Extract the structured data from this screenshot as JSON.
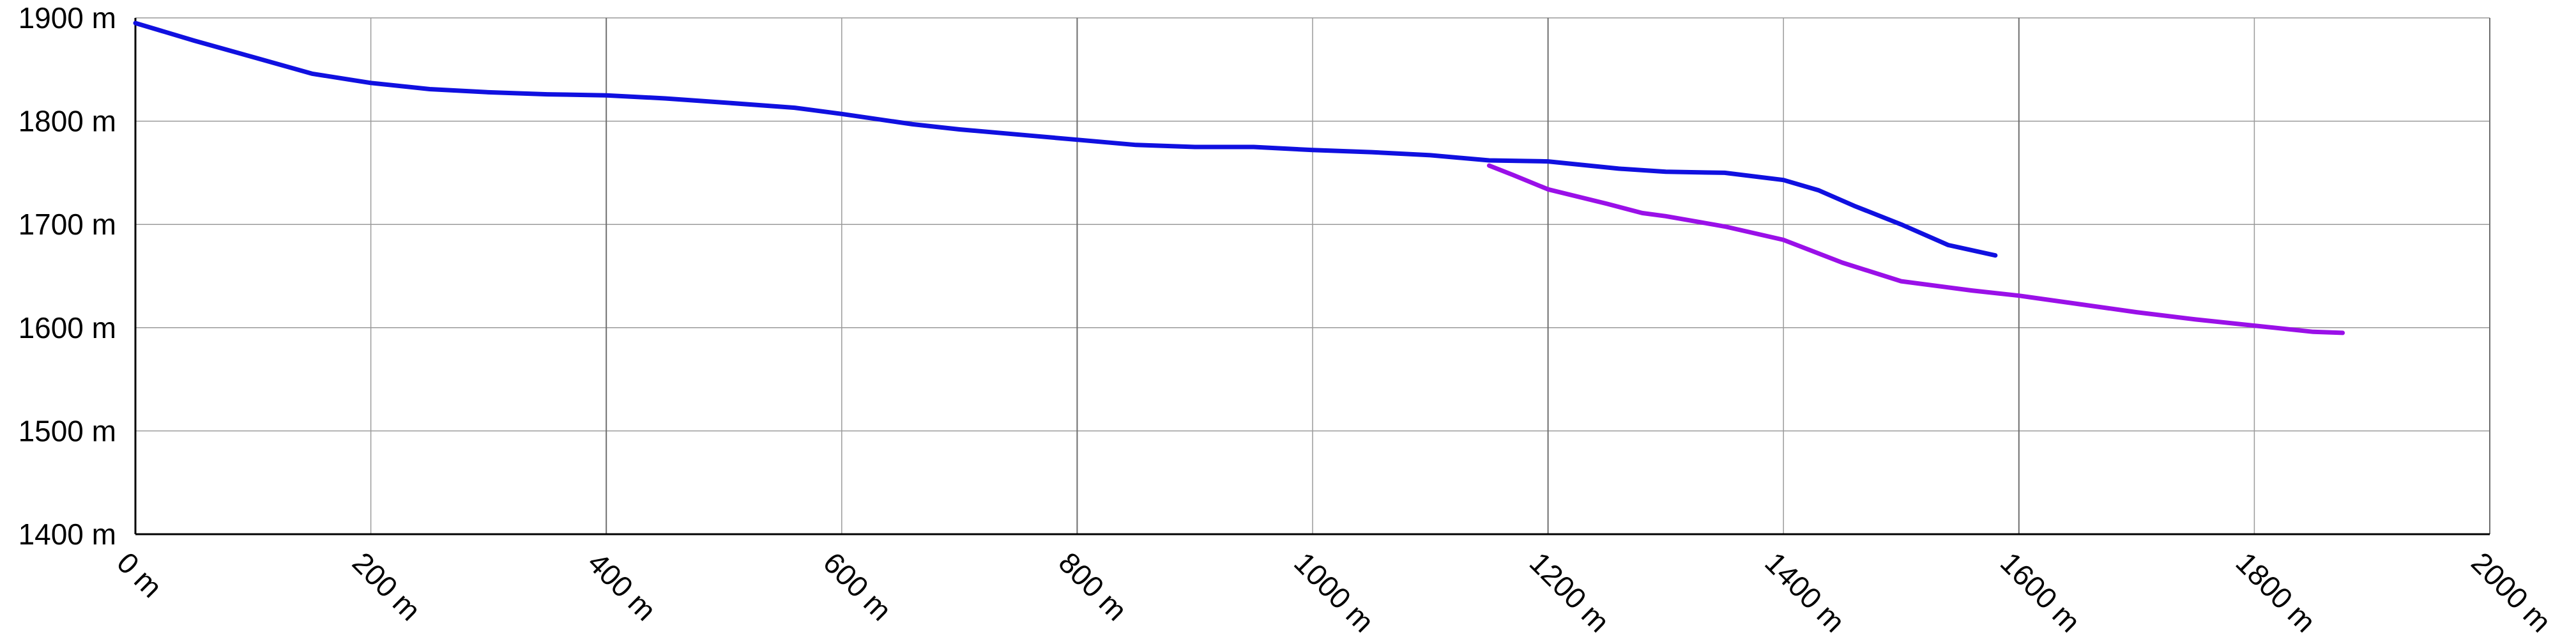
{
  "chart_data": {
    "type": "line",
    "title": "",
    "xlabel": "",
    "ylabel": "",
    "xlim": [
      0,
      2000
    ],
    "ylim": [
      1400,
      1900
    ],
    "grid": true,
    "legend": "none",
    "x_ticks": [
      0,
      200,
      400,
      600,
      800,
      1000,
      1200,
      1400,
      1600,
      1800,
      2000
    ],
    "x_tick_labels": [
      "0 m",
      "200 m",
      "400 m",
      "600 m",
      "800 m",
      "1000 m",
      "1200 m",
      "1400 m",
      "1600 m",
      "1800 m",
      "2000 m"
    ],
    "y_ticks": [
      1400,
      1500,
      1600,
      1700,
      1800,
      1900
    ],
    "y_tick_labels": [
      "1400 m",
      "1500 m",
      "1600 m",
      "1700 m",
      "1800 m",
      "1900 m"
    ],
    "series": [
      {
        "color": "#1010e0",
        "points": [
          [
            0,
            1895
          ],
          [
            50,
            1878
          ],
          [
            100,
            1862
          ],
          [
            150,
            1846
          ],
          [
            200,
            1837
          ],
          [
            250,
            1831
          ],
          [
            300,
            1828
          ],
          [
            350,
            1826
          ],
          [
            400,
            1825
          ],
          [
            450,
            1822
          ],
          [
            500,
            1818
          ],
          [
            560,
            1813
          ],
          [
            600,
            1807
          ],
          [
            660,
            1797
          ],
          [
            700,
            1792
          ],
          [
            760,
            1786
          ],
          [
            800,
            1782
          ],
          [
            850,
            1777
          ],
          [
            900,
            1775
          ],
          [
            950,
            1775
          ],
          [
            1000,
            1772
          ],
          [
            1050,
            1770
          ],
          [
            1100,
            1767
          ],
          [
            1150,
            1762
          ],
          [
            1200,
            1761
          ],
          [
            1260,
            1754
          ],
          [
            1300,
            1751
          ],
          [
            1350,
            1750
          ],
          [
            1400,
            1743
          ],
          [
            1430,
            1733
          ],
          [
            1460,
            1718
          ],
          [
            1500,
            1700
          ],
          [
            1540,
            1680
          ],
          [
            1580,
            1670
          ]
        ]
      },
      {
        "color": "#9a10e8",
        "points": [
          [
            1150,
            1757
          ],
          [
            1170,
            1748
          ],
          [
            1200,
            1734
          ],
          [
            1250,
            1720
          ],
          [
            1280,
            1711
          ],
          [
            1300,
            1708
          ],
          [
            1350,
            1698
          ],
          [
            1400,
            1685
          ],
          [
            1450,
            1663
          ],
          [
            1500,
            1645
          ],
          [
            1560,
            1636
          ],
          [
            1600,
            1631
          ],
          [
            1650,
            1623
          ],
          [
            1700,
            1615
          ],
          [
            1750,
            1608
          ],
          [
            1800,
            1602
          ],
          [
            1850,
            1596
          ],
          [
            1875,
            1595
          ]
        ]
      }
    ]
  }
}
